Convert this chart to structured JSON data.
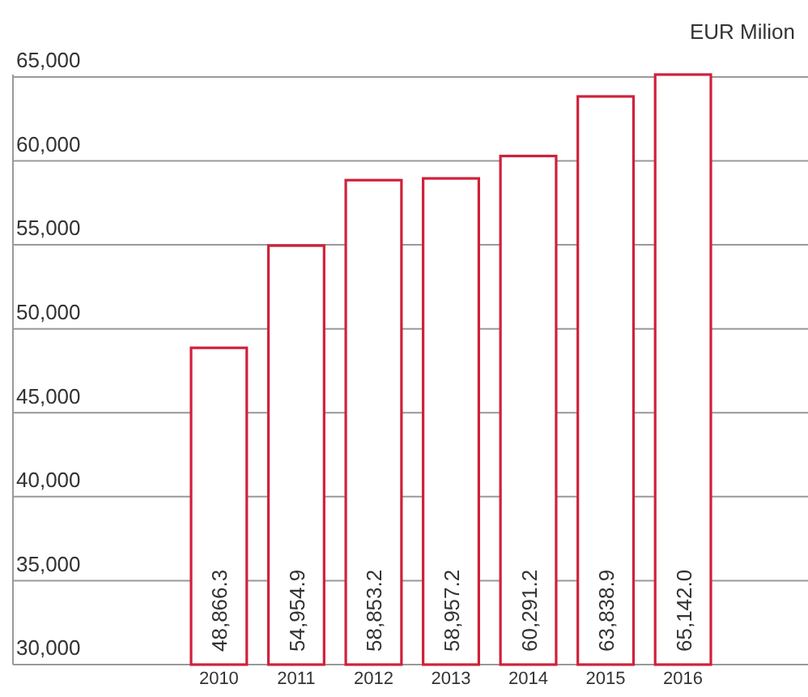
{
  "chart_data": {
    "type": "bar",
    "ylabel": "EUR Milion",
    "categories": [
      "2010",
      "2011",
      "2012",
      "2013",
      "2014",
      "2015",
      "2016"
    ],
    "values": [
      48866.3,
      54954.9,
      58853.2,
      58957.2,
      60291.2,
      63838.9,
      65142.0
    ],
    "value_labels": [
      "48,866.3",
      "54,954.9",
      "58,853.2",
      "58,957.2",
      "60,291.2",
      "63,838.9",
      "65,142.0"
    ],
    "color": "#d0213a",
    "ylim": [
      30000,
      65142
    ],
    "yticks": [
      {
        "value": 30000,
        "label": "30,000"
      },
      {
        "value": 35000,
        "label": "35,000"
      },
      {
        "value": 40000,
        "label": "40,000"
      },
      {
        "value": 45000,
        "label": "45,000"
      },
      {
        "value": 50000,
        "label": "50,000"
      },
      {
        "value": 55000,
        "label": "55,000"
      },
      {
        "value": 60000,
        "label": "60,000"
      },
      {
        "value": 65000,
        "label": "65,000"
      }
    ],
    "grid": "y"
  }
}
